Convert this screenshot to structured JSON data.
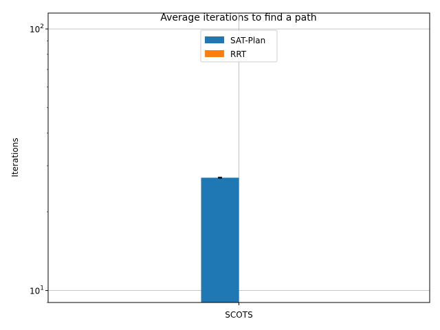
{
  "chart_data": {
    "type": "bar",
    "title": "Average iterations to find a path",
    "ylabel": "Iterations",
    "xlabel": "",
    "yscale": "log",
    "ylim": [
      9,
      115
    ],
    "categories": [
      "SCOTS"
    ],
    "series": [
      {
        "name": "SAT-Plan",
        "values": [
          27
        ],
        "error": [
          0.1
        ],
        "color": "#1f77b4"
      },
      {
        "name": "RRT",
        "values": [
          null
        ],
        "color": "#ff7f0e"
      }
    ],
    "yticks": [
      {
        "value": 10,
        "base": "10",
        "exp": "1"
      },
      {
        "value": 100,
        "base": "10",
        "exp": "2"
      }
    ],
    "grid": true,
    "legend_position": "top-center"
  }
}
